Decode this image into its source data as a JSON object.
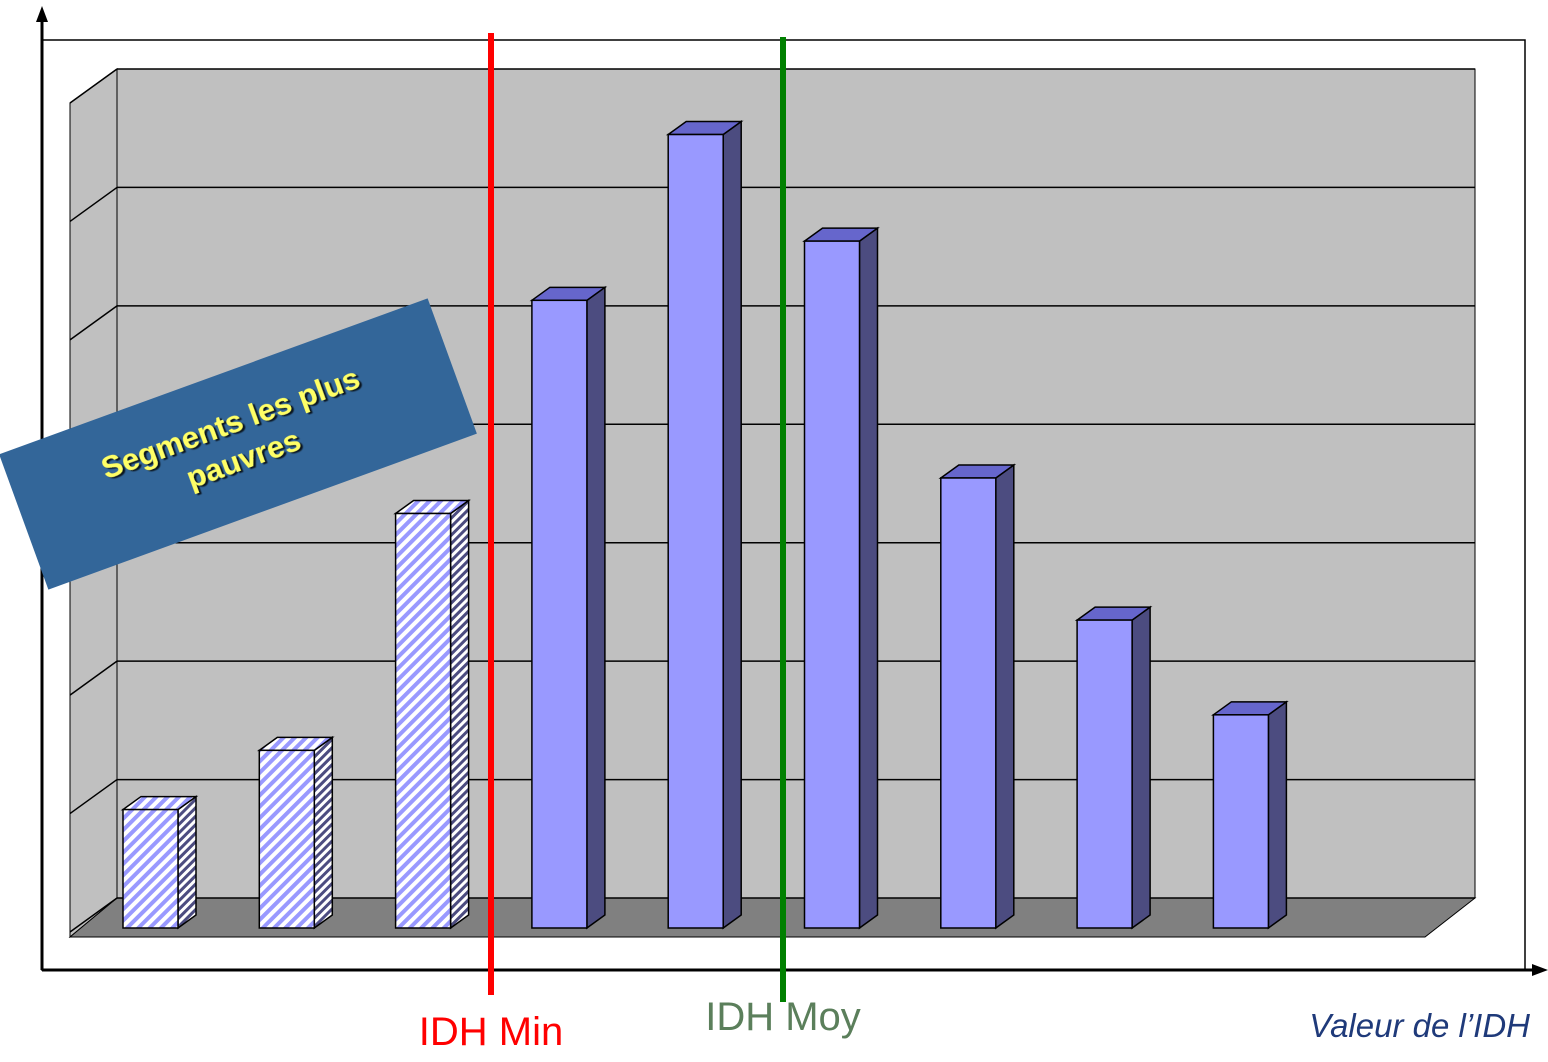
{
  "chart_data": {
    "type": "bar3d",
    "categories": [
      null,
      null,
      null,
      null,
      null,
      null,
      null,
      null,
      null
    ],
    "values": [
      1,
      1.5,
      3.5,
      5.3,
      6.7,
      5.8,
      3.8,
      2.6,
      1.8
    ],
    "patterned": [
      true,
      true,
      true,
      false,
      false,
      false,
      false,
      false,
      false
    ],
    "color": "#9999ff",
    "ylim": [
      0,
      7
    ],
    "yticks": [
      0,
      1,
      2,
      3,
      4,
      5,
      6,
      7
    ],
    "grid": true,
    "xlabel": "Valeur de l’IDH",
    "callout": {
      "lines": [
        "Segments les plus",
        "pauvres"
      ]
    },
    "annotations": [
      {
        "label": "IDH Min",
        "color": "#ff0000"
      },
      {
        "label": "IDH Moy",
        "color": "#008000"
      }
    ]
  }
}
